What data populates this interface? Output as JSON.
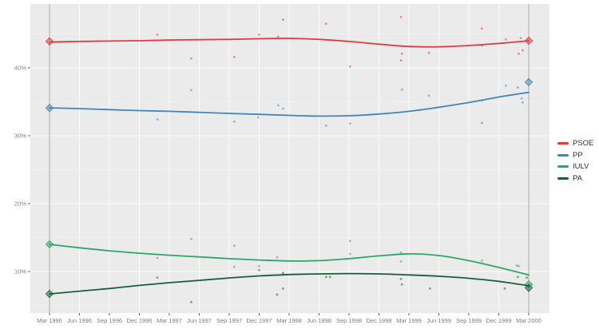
{
  "chart_data": {
    "type": "scatter",
    "title": "",
    "xlabel": "",
    "ylabel": "",
    "x_unit": "months_since_mar_1996",
    "x_axis": {
      "tick_months": [
        0,
        3,
        6,
        9,
        12,
        15,
        18,
        21,
        24,
        27,
        30,
        33,
        36,
        39,
        42,
        45,
        48
      ],
      "tick_labels": [
        "Mar 1996",
        "Jun 1996",
        "Sep 1996",
        "Dec 1996",
        "Mar 1997",
        "Jun 1997",
        "Sep 1997",
        "Dec 1997",
        "Mar 1998",
        "Jun 1998",
        "Sep 1998",
        "Dec 1998",
        "Mar 1999",
        "Jun 1999",
        "Sep 1999",
        "Dec 1999",
        "Mar 2000"
      ]
    },
    "y_axis": {
      "tick_values": [
        10,
        20,
        30,
        40
      ],
      "tick_labels": [
        "10%",
        "20%",
        "30%",
        "40%"
      ],
      "minor_values": [
        5,
        15,
        25,
        35,
        45
      ],
      "ylim": [
        4,
        49.5
      ]
    },
    "grid": "on",
    "panel_color": "#ebebeb",
    "gridline_color": "#ffffff",
    "election_line_color": "#a9a9a9",
    "tick_text_color": "#7f7f7f",
    "election_lines_months": [
      0,
      48
    ],
    "legend_position": "right",
    "series": [
      {
        "name": "PSOE",
        "color": "#e23a40",
        "trend_months": [
          0,
          3,
          6,
          9,
          12,
          15,
          18,
          21,
          24,
          27,
          30,
          33,
          36,
          39,
          42,
          45,
          48
        ],
        "trend_values": [
          43.8,
          43.9,
          43.95,
          44.0,
          44.1,
          44.15,
          44.2,
          44.3,
          44.35,
          44.2,
          43.9,
          43.5,
          43.15,
          43.1,
          43.3,
          43.6,
          44.0
        ],
        "polls": [
          [
            10.8,
            44.9
          ],
          [
            14.2,
            41.4
          ],
          [
            18.5,
            41.6
          ],
          [
            21.0,
            44.9
          ],
          [
            22.9,
            44.6
          ],
          [
            23.4,
            47.1
          ],
          [
            27.7,
            46.5
          ],
          [
            30.1,
            40.2
          ],
          [
            35.2,
            47.5
          ],
          [
            35.3,
            42.1
          ],
          [
            35.2,
            41.1
          ],
          [
            38.0,
            42.2
          ],
          [
            43.3,
            45.8
          ],
          [
            43.3,
            43.3
          ],
          [
            45.7,
            44.2
          ],
          [
            47.0,
            42.1
          ],
          [
            47.2,
            44.4
          ],
          [
            47.4,
            42.6
          ]
        ],
        "elections": [
          [
            0,
            43.9
          ],
          [
            48,
            44.0
          ]
        ]
      },
      {
        "name": "PP",
        "color": "#3f86c0",
        "trend_months": [
          0,
          3,
          6,
          9,
          12,
          15,
          18,
          21,
          24,
          27,
          30,
          33,
          36,
          39,
          42,
          45,
          48
        ],
        "trend_values": [
          34.1,
          34.0,
          33.85,
          33.7,
          33.6,
          33.45,
          33.3,
          33.15,
          33.0,
          32.9,
          32.95,
          33.2,
          33.6,
          34.2,
          34.9,
          35.7,
          36.4
        ],
        "polls": [
          [
            10.8,
            32.4
          ],
          [
            14.2,
            36.7
          ],
          [
            18.5,
            32.1
          ],
          [
            20.9,
            32.7
          ],
          [
            22.9,
            34.5
          ],
          [
            23.4,
            34.0
          ],
          [
            27.7,
            31.5
          ],
          [
            30.1,
            31.8
          ],
          [
            35.3,
            36.8
          ],
          [
            38.0,
            35.9
          ],
          [
            43.3,
            35.2
          ],
          [
            43.3,
            31.9
          ],
          [
            45.7,
            37.4
          ],
          [
            46.9,
            37.1
          ],
          [
            47.3,
            35.5
          ],
          [
            47.4,
            34.9
          ]
        ],
        "elections": [
          [
            0,
            34.1
          ],
          [
            48,
            37.9
          ]
        ]
      },
      {
        "name": "IULV",
        "color": "#2aa868",
        "trend_months": [
          0,
          3,
          6,
          9,
          12,
          15,
          18,
          21,
          24,
          27,
          30,
          33,
          36,
          39,
          42,
          45,
          48
        ],
        "trend_values": [
          14.0,
          13.5,
          13.05,
          12.7,
          12.4,
          12.15,
          11.9,
          11.7,
          11.55,
          11.6,
          11.9,
          12.3,
          12.6,
          12.35,
          11.6,
          10.6,
          9.5
        ],
        "polls": [
          [
            10.8,
            12.0
          ],
          [
            14.2,
            14.8
          ],
          [
            18.5,
            13.8
          ],
          [
            18.5,
            10.7
          ],
          [
            21.0,
            10.8
          ],
          [
            22.8,
            12.1
          ],
          [
            30.1,
            14.5
          ],
          [
            30.1,
            12.6
          ],
          [
            35.2,
            12.8
          ],
          [
            35.2,
            11.5
          ],
          [
            43.3,
            11.6
          ],
          [
            46.8,
            10.9
          ],
          [
            47.0,
            10.8
          ]
        ],
        "elections": [
          [
            0,
            14.0
          ],
          [
            48,
            8.1
          ]
        ]
      },
      {
        "name": "PA",
        "color": "#17603a",
        "trend_months": [
          0,
          3,
          6,
          9,
          12,
          15,
          18,
          21,
          24,
          27,
          30,
          33,
          36,
          39,
          42,
          45,
          48
        ],
        "trend_values": [
          6.7,
          7.1,
          7.5,
          7.95,
          8.35,
          8.7,
          9.05,
          9.35,
          9.55,
          9.65,
          9.7,
          9.65,
          9.5,
          9.3,
          9.0,
          8.55,
          7.9
        ],
        "polls": [
          [
            10.8,
            9.1
          ],
          [
            14.2,
            5.5
          ],
          [
            21.0,
            10.2
          ],
          [
            22.8,
            6.6
          ],
          [
            23.4,
            7.5
          ],
          [
            23.4,
            9.8
          ],
          [
            27.7,
            9.2
          ],
          [
            28.1,
            9.2
          ],
          [
            35.2,
            8.9
          ],
          [
            35.3,
            8.1
          ],
          [
            38.1,
            7.5
          ],
          [
            45.6,
            7.5
          ],
          [
            46.9,
            9.2
          ],
          [
            47.8,
            9.1
          ]
        ],
        "elections": [
          [
            0,
            6.7
          ],
          [
            48,
            7.6
          ]
        ]
      }
    ]
  }
}
